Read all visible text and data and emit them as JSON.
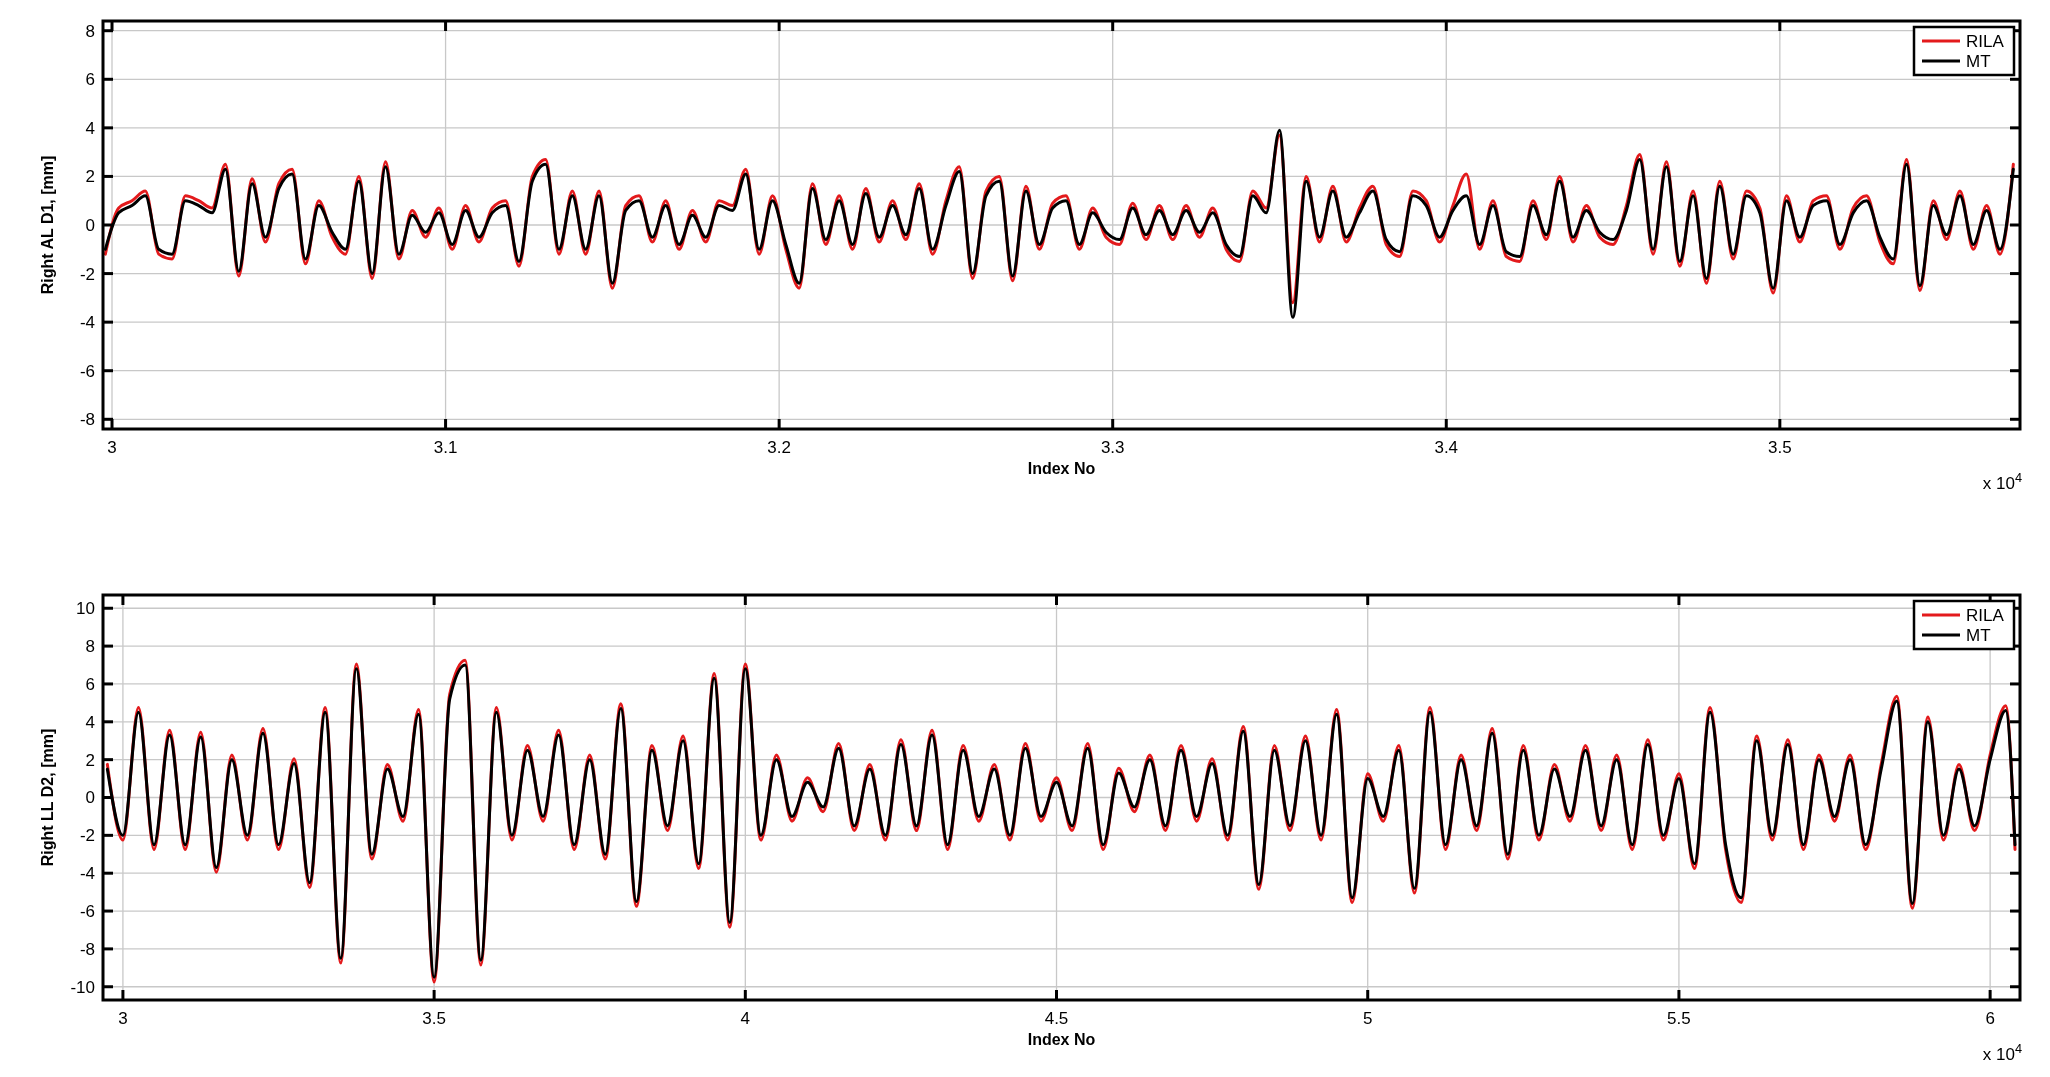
{
  "chart_data": [
    {
      "type": "line",
      "xlabel": "Index No",
      "ylabel": "Right AL D1, [mm]",
      "annotations": [
        "x 10$^{4}$"
      ],
      "xlim": [
        2.9973,
        3.572
      ],
      "ylim": [
        -8.4,
        8.4
      ],
      "xticks": [
        3,
        3.1,
        3.2,
        3.3,
        3.4,
        3.5
      ],
      "yticks": [
        -8,
        -6,
        -4,
        -2,
        0,
        2,
        4,
        6,
        8
      ],
      "grid": true,
      "legend": "top right",
      "marker": "none",
      "line_style": "solid",
      "x": [
        2.998,
        3.002,
        3.006,
        3.01,
        3.014,
        3.018,
        3.022,
        3.026,
        3.03,
        3.034,
        3.038,
        3.042,
        3.046,
        3.05,
        3.054,
        3.058,
        3.062,
        3.066,
        3.07,
        3.074,
        3.078,
        3.082,
        3.086,
        3.09,
        3.094,
        3.098,
        3.102,
        3.106,
        3.11,
        3.114,
        3.118,
        3.122,
        3.126,
        3.13,
        3.134,
        3.138,
        3.142,
        3.146,
        3.15,
        3.154,
        3.158,
        3.162,
        3.166,
        3.17,
        3.174,
        3.178,
        3.182,
        3.186,
        3.19,
        3.194,
        3.198,
        3.202,
        3.206,
        3.21,
        3.214,
        3.218,
        3.222,
        3.226,
        3.23,
        3.234,
        3.238,
        3.242,
        3.246,
        3.25,
        3.254,
        3.258,
        3.262,
        3.266,
        3.27,
        3.274,
        3.278,
        3.282,
        3.286,
        3.29,
        3.294,
        3.298,
        3.302,
        3.306,
        3.31,
        3.314,
        3.318,
        3.322,
        3.326,
        3.33,
        3.334,
        3.338,
        3.342,
        3.346,
        3.35,
        3.354,
        3.358,
        3.362,
        3.366,
        3.37,
        3.374,
        3.378,
        3.382,
        3.386,
        3.39,
        3.394,
        3.398,
        3.402,
        3.406,
        3.41,
        3.414,
        3.418,
        3.422,
        3.426,
        3.43,
        3.434,
        3.438,
        3.442,
        3.446,
        3.45,
        3.454,
        3.458,
        3.462,
        3.466,
        3.47,
        3.474,
        3.478,
        3.482,
        3.486,
        3.49,
        3.494,
        3.498,
        3.502,
        3.506,
        3.51,
        3.514,
        3.518,
        3.522,
        3.526,
        3.53,
        3.534,
        3.538,
        3.542,
        3.546,
        3.55,
        3.554,
        3.558,
        3.562,
        3.566,
        3.57
      ],
      "series": [
        {
          "name": "RILA",
          "color": "#e31a1c",
          "values": [
            -1.2,
            0.7,
            1.0,
            1.4,
            -1.2,
            -1.4,
            1.2,
            1.0,
            0.7,
            2.5,
            -2.1,
            1.9,
            -0.7,
            1.7,
            2.3,
            -1.6,
            1.0,
            -0.5,
            -1.2,
            2.0,
            -2.2,
            2.6,
            -1.4,
            0.6,
            -0.5,
            0.7,
            -1.0,
            0.8,
            -0.7,
            0.7,
            1.0,
            -1.7,
            2.0,
            2.7,
            -1.2,
            1.4,
            -1.2,
            1.4,
            -2.6,
            0.8,
            1.2,
            -0.7,
            1.0,
            -1.0,
            0.6,
            -0.7,
            1.0,
            0.8,
            2.3,
            -1.2,
            1.2,
            -1.0,
            -2.6,
            1.7,
            -0.8,
            1.2,
            -1.0,
            1.5,
            -0.7,
            1.0,
            -0.6,
            1.7,
            -1.2,
            1.0,
            2.4,
            -2.2,
            1.4,
            2.0,
            -2.3,
            1.6,
            -1.0,
            0.9,
            1.2,
            -1.0,
            0.7,
            -0.5,
            -0.8,
            0.9,
            -0.6,
            0.8,
            -0.6,
            0.8,
            -0.5,
            0.7,
            -1.0,
            -1.5,
            1.4,
            0.7,
            3.7,
            -3.2,
            2.0,
            -0.7,
            1.6,
            -0.7,
            0.7,
            1.6,
            -0.8,
            -1.3,
            1.4,
            1.0,
            -0.7,
            0.8,
            2.1,
            -1.0,
            1.0,
            -1.3,
            -1.5,
            1.0,
            -0.6,
            2.0,
            -0.7,
            0.8,
            -0.5,
            -0.8,
            0.8,
            2.9,
            -1.2,
            2.6,
            -1.7,
            1.4,
            -2.4,
            1.8,
            -1.4,
            1.4,
            0.7,
            -2.8,
            1.2,
            -0.7,
            1.0,
            1.2,
            -1.0,
            0.7,
            1.2,
            -0.7,
            -1.6,
            2.7,
            -2.7,
            1.0,
            -0.6,
            1.4,
            -1.0,
            0.8,
            -1.2,
            2.5
          ]
        },
        {
          "name": "MT",
          "color": "#000000",
          "values": [
            -1.0,
            0.5,
            0.8,
            1.2,
            -1.0,
            -1.2,
            1.0,
            0.8,
            0.5,
            2.3,
            -1.9,
            1.7,
            -0.5,
            1.5,
            2.1,
            -1.4,
            0.8,
            -0.3,
            -1.0,
            1.8,
            -2.0,
            2.4,
            -1.2,
            0.4,
            -0.3,
            0.5,
            -0.8,
            0.6,
            -0.5,
            0.5,
            0.8,
            -1.5,
            1.8,
            2.5,
            -1.0,
            1.2,
            -1.0,
            1.2,
            -2.4,
            0.6,
            1.0,
            -0.5,
            0.8,
            -0.8,
            0.4,
            -0.5,
            0.8,
            0.6,
            2.1,
            -1.0,
            1.0,
            -0.8,
            -2.4,
            1.5,
            -0.6,
            1.0,
            -0.8,
            1.3,
            -0.5,
            0.8,
            -0.4,
            1.5,
            -1.0,
            0.8,
            2.2,
            -2.0,
            1.2,
            1.8,
            -2.1,
            1.4,
            -0.8,
            0.7,
            1.0,
            -0.8,
            0.5,
            -0.3,
            -0.6,
            0.7,
            -0.4,
            0.6,
            -0.4,
            0.6,
            -0.3,
            0.5,
            -0.8,
            -1.3,
            1.2,
            0.5,
            3.9,
            -3.8,
            1.8,
            -0.5,
            1.4,
            -0.5,
            0.5,
            1.4,
            -0.6,
            -1.1,
            1.2,
            0.8,
            -0.5,
            0.6,
            1.2,
            -0.8,
            0.8,
            -1.1,
            -1.3,
            0.8,
            -0.4,
            1.8,
            -0.5,
            0.6,
            -0.3,
            -0.6,
            0.6,
            2.7,
            -1.0,
            2.4,
            -1.5,
            1.2,
            -2.2,
            1.6,
            -1.2,
            1.2,
            0.5,
            -2.6,
            1.0,
            -0.5,
            0.8,
            1.0,
            -0.8,
            0.5,
            1.0,
            -0.5,
            -1.4,
            2.5,
            -2.5,
            0.8,
            -0.4,
            1.2,
            -0.8,
            0.6,
            -1.0,
            2.3
          ]
        }
      ]
    },
    {
      "type": "line",
      "xlabel": "Index No",
      "ylabel": "Right LL D2, [mm]",
      "annotations": [
        "x 10$^{4}$"
      ],
      "xlim": [
        2.968,
        6.048
      ],
      "ylim": [
        -10.7,
        10.7
      ],
      "xticks": [
        3,
        3.5,
        4,
        4.5,
        5,
        5.5,
        6
      ],
      "yticks": [
        -10,
        -8,
        -6,
        -4,
        -2,
        0,
        2,
        4,
        6,
        8,
        10
      ],
      "grid": true,
      "legend": "top right",
      "marker": "none",
      "line_style": "solid",
      "x": [
        2.975,
        3.0,
        3.025,
        3.05,
        3.075,
        3.1,
        3.125,
        3.15,
        3.175,
        3.2,
        3.225,
        3.25,
        3.275,
        3.3,
        3.325,
        3.35,
        3.375,
        3.4,
        3.425,
        3.45,
        3.475,
        3.5,
        3.525,
        3.55,
        3.575,
        3.6,
        3.625,
        3.65,
        3.675,
        3.7,
        3.725,
        3.75,
        3.775,
        3.8,
        3.825,
        3.85,
        3.875,
        3.9,
        3.925,
        3.95,
        3.975,
        4.0,
        4.025,
        4.05,
        4.075,
        4.1,
        4.125,
        4.15,
        4.175,
        4.2,
        4.225,
        4.25,
        4.275,
        4.3,
        4.325,
        4.35,
        4.375,
        4.4,
        4.425,
        4.45,
        4.475,
        4.5,
        4.525,
        4.55,
        4.575,
        4.6,
        4.625,
        4.65,
        4.675,
        4.7,
        4.725,
        4.75,
        4.775,
        4.8,
        4.825,
        4.85,
        4.875,
        4.9,
        4.925,
        4.95,
        4.975,
        5.0,
        5.025,
        5.05,
        5.075,
        5.1,
        5.125,
        5.15,
        5.175,
        5.2,
        5.225,
        5.25,
        5.275,
        5.3,
        5.325,
        5.35,
        5.375,
        5.4,
        5.425,
        5.45,
        5.475,
        5.5,
        5.525,
        5.55,
        5.575,
        5.6,
        5.625,
        5.65,
        5.675,
        5.7,
        5.725,
        5.75,
        5.775,
        5.8,
        5.825,
        5.85,
        5.875,
        5.9,
        5.925,
        5.95,
        5.975,
        6.0,
        6.025,
        6.04
      ],
      "series": [
        {
          "name": "RILA",
          "color": "#e31a1c",
          "values": [
            1.75,
            -2.25,
            4.75,
            -2.75,
            3.55,
            -2.75,
            3.45,
            -3.95,
            2.25,
            -2.25,
            3.65,
            -2.75,
            2.05,
            -4.75,
            4.75,
            -8.75,
            7.05,
            -3.25,
            1.75,
            -1.25,
            4.65,
            -9.75,
            5.45,
            7.25,
            -8.85,
            4.75,
            -2.25,
            2.75,
            -1.25,
            3.55,
            -2.75,
            2.25,
            -3.25,
            4.95,
            -5.75,
            2.75,
            -1.75,
            3.25,
            -3.75,
            6.55,
            -6.85,
            7.05,
            -2.25,
            2.25,
            -1.25,
            1.05,
            -0.75,
            2.85,
            -1.75,
            1.75,
            -2.25,
            3.05,
            -1.75,
            3.55,
            -2.75,
            2.75,
            -1.25,
            1.75,
            -2.25,
            2.85,
            -1.25,
            1.05,
            -1.75,
            2.85,
            -2.75,
            1.55,
            -0.75,
            2.25,
            -1.75,
            2.75,
            -1.25,
            2.05,
            -2.25,
            3.75,
            -4.85,
            2.75,
            -1.75,
            3.25,
            -2.25,
            4.65,
            -5.55,
            1.25,
            -1.25,
            2.75,
            -5.05,
            4.75,
            -2.75,
            2.25,
            -1.75,
            3.65,
            -3.25,
            2.75,
            -2.25,
            1.75,
            -1.25,
            2.75,
            -1.75,
            2.25,
            -2.75,
            3.05,
            -2.25,
            1.25,
            -3.75,
            4.75,
            -2.75,
            -5.55,
            3.25,
            -2.25,
            3.05,
            -2.75,
            2.25,
            -1.25,
            2.25,
            -2.75,
            1.75,
            5.35,
            -5.85,
            4.25,
            -2.25,
            1.75,
            -1.75,
            2.25,
            4.85,
            -2.75
          ]
        },
        {
          "name": "MT",
          "color": "#000000",
          "values": [
            1.5,
            -2.0,
            4.5,
            -2.5,
            3.3,
            -2.5,
            3.2,
            -3.7,
            2.0,
            -2.0,
            3.4,
            -2.5,
            1.8,
            -4.5,
            4.5,
            -8.5,
            6.8,
            -3.0,
            1.5,
            -1.0,
            4.4,
            -9.5,
            5.2,
            7.0,
            -8.6,
            4.5,
            -2.0,
            2.5,
            -1.0,
            3.3,
            -2.5,
            2.0,
            -3.0,
            4.7,
            -5.5,
            2.5,
            -1.5,
            3.0,
            -3.5,
            6.3,
            -6.6,
            6.8,
            -2.0,
            2.0,
            -1.0,
            0.8,
            -0.5,
            2.6,
            -1.5,
            1.5,
            -2.0,
            2.8,
            -1.5,
            3.3,
            -2.5,
            2.5,
            -1.0,
            1.5,
            -2.0,
            2.6,
            -1.0,
            0.8,
            -1.5,
            2.6,
            -2.5,
            1.3,
            -0.5,
            2.0,
            -1.5,
            2.5,
            -1.0,
            1.8,
            -2.0,
            3.5,
            -4.6,
            2.5,
            -1.5,
            3.0,
            -2.0,
            4.4,
            -5.3,
            1.0,
            -1.0,
            2.5,
            -4.8,
            4.5,
            -2.5,
            2.0,
            -1.5,
            3.4,
            -3.0,
            2.5,
            -2.0,
            1.5,
            -1.0,
            2.5,
            -1.5,
            2.0,
            -2.5,
            2.8,
            -2.0,
            1.0,
            -3.5,
            4.5,
            -2.5,
            -5.3,
            3.0,
            -2.0,
            2.8,
            -2.5,
            2.0,
            -1.0,
            2.0,
            -2.5,
            1.5,
            5.1,
            -5.6,
            4.0,
            -2.0,
            1.5,
            -1.5,
            2.0,
            4.6,
            -2.5
          ]
        }
      ]
    }
  ]
}
